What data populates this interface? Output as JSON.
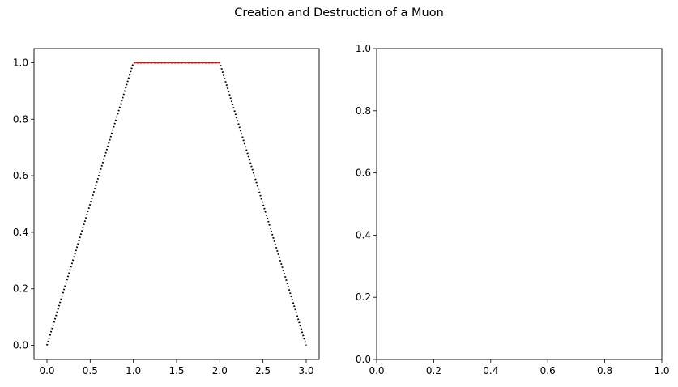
{
  "figure": {
    "title": "Creation and Destruction of a Muon"
  },
  "chart_data": [
    {
      "type": "line",
      "title": "",
      "xlabel": "",
      "ylabel": "",
      "xlim": [
        -0.15,
        3.15
      ],
      "ylim": [
        -0.05,
        1.05
      ],
      "xticks": [
        0.0,
        0.5,
        1.0,
        1.5,
        2.0,
        2.5,
        3.0
      ],
      "xtick_labels": [
        "0.0",
        "0.5",
        "1.0",
        "1.5",
        "2.0",
        "2.5",
        "3.0"
      ],
      "yticks": [
        0.0,
        0.2,
        0.4,
        0.6,
        0.8,
        1.0
      ],
      "ytick_labels": [
        "0.0",
        "0.2",
        "0.4",
        "0.6",
        "0.8",
        "1.0"
      ],
      "grid": false,
      "legend": "none",
      "series": [
        {
          "x": [
            0,
            1,
            2,
            3
          ],
          "y": [
            0,
            1,
            1,
            0
          ],
          "color": "#000000",
          "style": "dotted"
        },
        {
          "x": [
            1,
            2
          ],
          "y": [
            1,
            1
          ],
          "color": "#ff0000",
          "style": "solid"
        }
      ]
    },
    {
      "type": "line",
      "title": "",
      "xlabel": "",
      "ylabel": "",
      "xlim": [
        0,
        1
      ],
      "ylim": [
        0,
        1
      ],
      "xticks": [
        0.0,
        0.2,
        0.4,
        0.6,
        0.8,
        1.0
      ],
      "xtick_labels": [
        "0.0",
        "0.2",
        "0.4",
        "0.6",
        "0.8",
        "1.0"
      ],
      "yticks": [
        0.0,
        0.2,
        0.4,
        0.6,
        0.8,
        1.0
      ],
      "ytick_labels": [
        "0.0",
        "0.2",
        "0.4",
        "0.6",
        "0.8",
        "1.0"
      ],
      "grid": false,
      "legend": "none",
      "series": []
    }
  ]
}
